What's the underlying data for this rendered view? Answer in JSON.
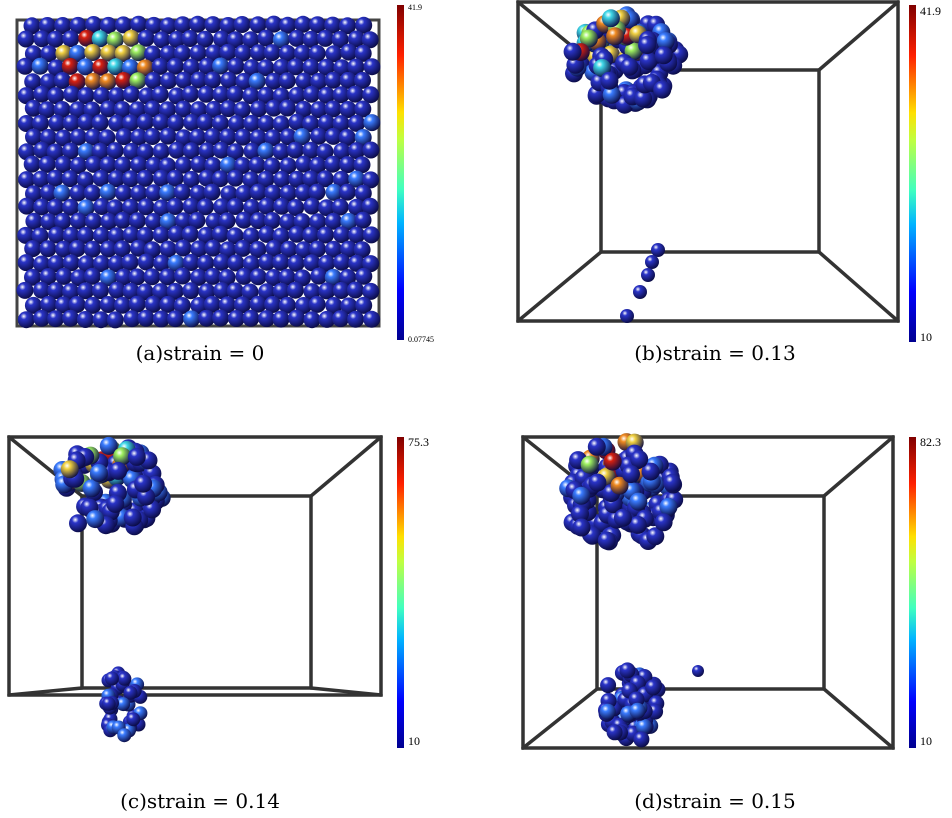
{
  "panels": [
    {
      "caption": "(a)strain = 0",
      "colorbar_max": "41.9",
      "colorbar_min": "0.07745"
    },
    {
      "caption": "(b)strain = 0.13",
      "colorbar_max": "41.9",
      "colorbar_min": "10"
    },
    {
      "caption": "(c)strain = 0.14",
      "colorbar_max": "75.3",
      "colorbar_min": "10"
    },
    {
      "caption": "(d)strain = 0.15",
      "colorbar_max": "82.3",
      "colorbar_min": "10"
    }
  ]
}
